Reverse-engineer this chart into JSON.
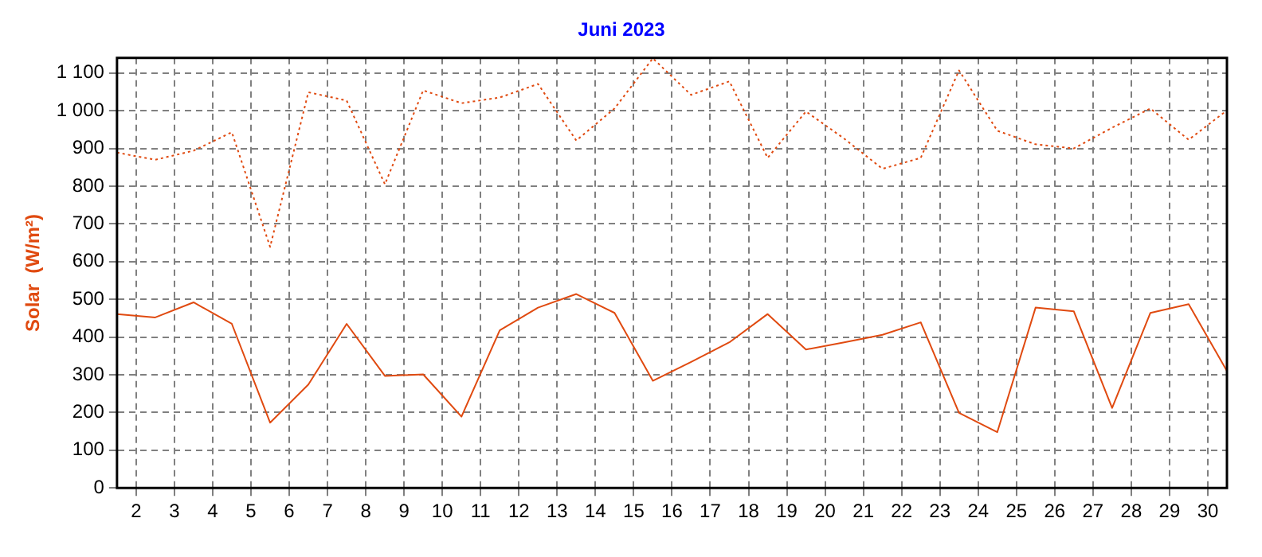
{
  "chart_data": {
    "type": "line",
    "title": "Juni 2023",
    "ylabel": "Solar  (W/m²)",
    "x": [
      1.5,
      2.5,
      3.5,
      4.5,
      5.5,
      6.5,
      7.5,
      8.5,
      9.5,
      10.5,
      11.5,
      12.5,
      13.5,
      14.5,
      15.5,
      16.5,
      17.5,
      18.5,
      19.5,
      20.5,
      21.5,
      22.5,
      23.5,
      24.5,
      25.5,
      26.5,
      27.5,
      28.5,
      29.5,
      30.5
    ],
    "series": [
      {
        "color": "#e04a10",
        "line_style": "dotted",
        "values": [
          889,
          870,
          894,
          943,
          639,
          1049,
          1027,
          805,
          1054,
          1020,
          1035,
          1071,
          921,
          1006,
          1139,
          1042,
          1078,
          875,
          998,
          926,
          846,
          875,
          1107,
          947,
          911,
          900,
          955,
          1006,
          923,
          1001
        ]
      },
      {
        "color": "#e04a10",
        "line_style": "solid",
        "values": [
          461,
          452,
          492,
          435,
          173,
          274,
          435,
          297,
          301,
          189,
          418,
          478,
          514,
          464,
          284,
          334,
          386,
          461,
          367,
          386,
          406,
          439,
          199,
          148,
          478,
          468,
          212,
          464,
          487,
          310
        ]
      }
    ],
    "xlim": [
      1.5,
      30.5
    ],
    "xticks": [
      2,
      3,
      4,
      5,
      6,
      7,
      8,
      9,
      10,
      11,
      12,
      13,
      14,
      15,
      16,
      17,
      18,
      19,
      20,
      21,
      22,
      23,
      24,
      25,
      26,
      27,
      28,
      29,
      30
    ],
    "ylim": [
      0,
      1140
    ],
    "yticks": [
      0,
      100,
      200,
      300,
      400,
      500,
      600,
      700,
      800,
      900,
      {
        "value": 1000,
        "label": "1 000"
      },
      {
        "value": 1100,
        "label": "1 100"
      }
    ],
    "grid": true,
    "legend": false,
    "marker": "none"
  }
}
